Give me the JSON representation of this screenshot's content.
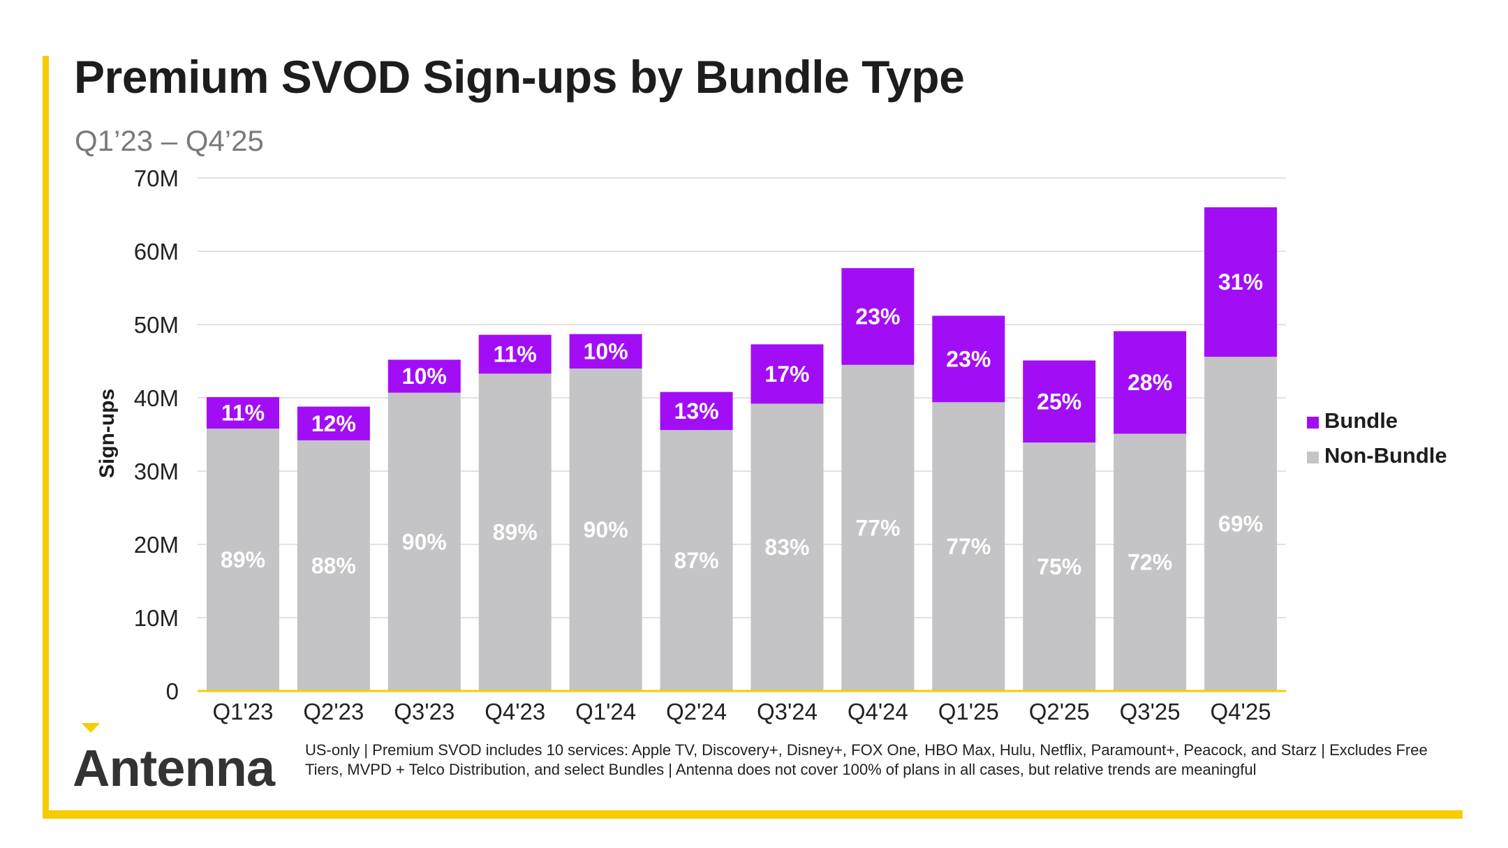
{
  "header": {
    "title": "Premium SVOD Sign-ups by Bundle Type",
    "subtitle": "Q1’23 – Q4’25"
  },
  "brand": {
    "logo_text": "Antenna",
    "accent_color": "#f5cd00"
  },
  "footnote": "US-only | Premium SVOD includes 10 services: Apple TV, Discovery+, Disney+, FOX One, HBO Max, Hulu, Netflix, Paramount+, Peacock, and Starz | Excludes Free Tiers, MVPD + Telco Distribution, and select Bundles | Antenna does not cover 100% of plans in all cases, but relative trends are meaningful",
  "chart_data": {
    "type": "bar",
    "stacked": true,
    "title": "Premium SVOD Sign-ups by Bundle Type",
    "subtitle": "Q1’23 – Q4’25",
    "xlabel": "",
    "ylabel": "Sign-ups",
    "ylim": [
      0,
      70
    ],
    "unit": "M",
    "yticks": [
      "0",
      "10M",
      "20M",
      "30M",
      "40M",
      "50M",
      "60M",
      "70M"
    ],
    "grid": true,
    "legend_position": "right",
    "categories": [
      "Q1'23",
      "Q2'23",
      "Q3'23",
      "Q4'23",
      "Q1'24",
      "Q2'24",
      "Q3'24",
      "Q4'24",
      "Q1'25",
      "Q2'25",
      "Q3'25",
      "Q4'25"
    ],
    "series": [
      {
        "name": "Non-Bundle",
        "color": "#c4c3c5",
        "values": [
          35.8,
          34.2,
          40.7,
          43.3,
          44.0,
          35.6,
          39.2,
          44.5,
          39.4,
          33.9,
          35.1,
          45.6
        ],
        "labels": [
          "89%",
          "88%",
          "90%",
          "89%",
          "90%",
          "87%",
          "83%",
          "77%",
          "77%",
          "75%",
          "72%",
          "69%"
        ]
      },
      {
        "name": "Bundle",
        "color": "#a10ef5",
        "values": [
          4.3,
          4.6,
          4.5,
          5.3,
          4.7,
          5.2,
          8.1,
          13.2,
          11.8,
          11.2,
          14.0,
          20.4
        ],
        "labels": [
          "11%",
          "12%",
          "10%",
          "11%",
          "10%",
          "13%",
          "17%",
          "23%",
          "23%",
          "25%",
          "28%",
          "31%"
        ]
      }
    ],
    "legend": [
      "Bundle",
      "Non-Bundle"
    ]
  }
}
